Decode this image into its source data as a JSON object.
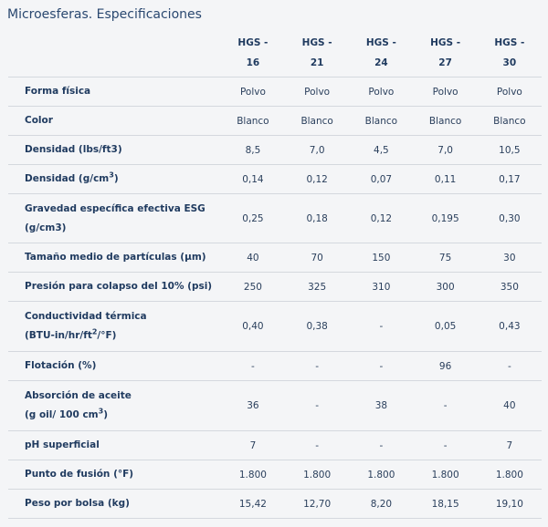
{
  "title": "Microesferas. Especificaciones",
  "columns": [
    "HGS -\n16",
    "HGS -\n21",
    "HGS -\n24",
    "HGS -\n27",
    "HGS -\n30"
  ],
  "rows": [
    {
      "label": "Forma física",
      "values": [
        "Polvo",
        "Polvo",
        "Polvo",
        "Polvo",
        "Polvo"
      ]
    },
    {
      "label": "Color",
      "values": [
        "Blanco",
        "Blanco",
        "Blanco",
        "Blanco",
        "Blanco"
      ]
    },
    {
      "label": "Densidad (lbs/ft3)",
      "values": [
        "8,5",
        "7,0",
        "4,5",
        "7,0",
        "10,5"
      ]
    },
    {
      "label_pre": "Densidad (g/cm",
      "label_sup": "3",
      "label_post": ")",
      "values": [
        "0,14",
        "0,12",
        "0,07",
        "0,11",
        "0,17"
      ]
    },
    {
      "label": "Gravedad específica efectiva ESG",
      "label_line2": "(g/cm3)",
      "values": [
        "0,25",
        "0,18",
        "0,12",
        "0,195",
        "0,30"
      ]
    },
    {
      "label": "Tamaño medio de partículas (µm)",
      "values": [
        "40",
        "70",
        "150",
        "75",
        "30"
      ]
    },
    {
      "label": "Presión para colapso del 10% (psi)",
      "values": [
        "250",
        "325",
        "310",
        "300",
        "350"
      ]
    },
    {
      "label": "Conductividad térmica",
      "label_line2_pre": "(BTU-in/hr/ft",
      "label_line2_sup": "2",
      "label_line2_post": "/°F)",
      "values": [
        "0,40",
        "0,38",
        "-",
        "0,05",
        "0,43"
      ]
    },
    {
      "label": "Flotación (%)",
      "values": [
        "-",
        "-",
        "-",
        "96",
        "-"
      ]
    },
    {
      "label": "Absorción de aceite",
      "label_line2_pre": "(g oil/ 100 cm",
      "label_line2_sup": "3",
      "label_line2_post": ")",
      "values": [
        "36",
        "-",
        "38",
        "-",
        "40"
      ]
    },
    {
      "label": "pH superficial",
      "values": [
        "7",
        "-",
        "-",
        "-",
        "7"
      ]
    },
    {
      "label": "Punto de fusión (°F)",
      "values": [
        "1.800",
        "1.800",
        "1.800",
        "1.800",
        "1.800"
      ]
    },
    {
      "label": "Peso por bolsa (kg)",
      "values": [
        "15,42",
        "12,70",
        "8,20",
        "18,15",
        "19,10"
      ]
    }
  ]
}
